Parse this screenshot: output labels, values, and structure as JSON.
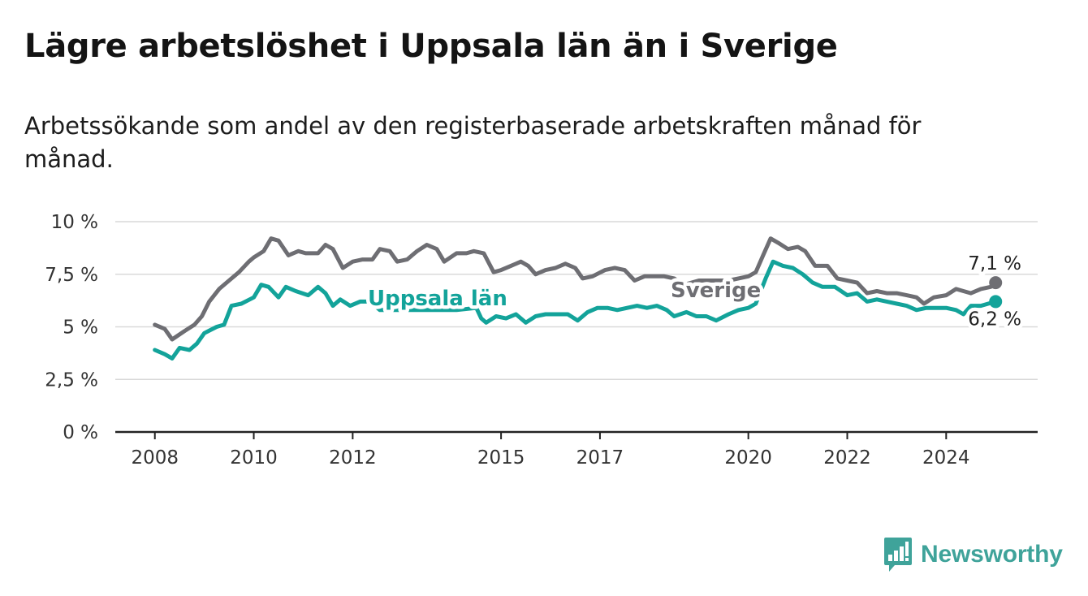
{
  "title": "Lägre arbetslöshet i Uppsala län än i Sverige",
  "subtitle": "Arbetssökande som andel av den registerbaserade arbetskraften månad för månad.",
  "brand": {
    "name": "Newsworthy",
    "icon": "newsworthy-logo-icon",
    "color": "#3fa39a"
  },
  "chart_data": {
    "type": "line",
    "title": "Lägre arbetslöshet i Uppsala län än i Sverige",
    "xlabel": "",
    "ylabel": "",
    "x_ticks": [
      2008,
      2010,
      2012,
      2015,
      2017,
      2020,
      2022,
      2024
    ],
    "y_ticks": [
      0,
      2.5,
      5,
      7.5,
      10
    ],
    "y_tick_labels": [
      "0 %",
      "2,5 %",
      "5 %",
      "7,5 %",
      "10 %"
    ],
    "ylim": [
      0,
      10
    ],
    "xlim": [
      2007.2,
      2025.85
    ],
    "grid": true,
    "legend": "inline labels",
    "series": [
      {
        "name": "Sverige",
        "color": "#6e6e73",
        "end_label": "7,1 %",
        "points": [
          [
            2008.0,
            5.1
          ],
          [
            2008.2,
            4.9
          ],
          [
            2008.35,
            4.4
          ],
          [
            2008.6,
            4.8
          ],
          [
            2008.8,
            5.1
          ],
          [
            2008.95,
            5.5
          ],
          [
            2009.1,
            6.2
          ],
          [
            2009.3,
            6.8
          ],
          [
            2009.5,
            7.2
          ],
          [
            2009.7,
            7.6
          ],
          [
            2009.9,
            8.1
          ],
          [
            2010.0,
            8.3
          ],
          [
            2010.2,
            8.6
          ],
          [
            2010.35,
            9.2
          ],
          [
            2010.5,
            9.1
          ],
          [
            2010.7,
            8.4
          ],
          [
            2010.9,
            8.6
          ],
          [
            2011.05,
            8.5
          ],
          [
            2011.3,
            8.5
          ],
          [
            2011.45,
            8.9
          ],
          [
            2011.6,
            8.7
          ],
          [
            2011.8,
            7.8
          ],
          [
            2012.0,
            8.1
          ],
          [
            2012.2,
            8.2
          ],
          [
            2012.4,
            8.2
          ],
          [
            2012.55,
            8.7
          ],
          [
            2012.75,
            8.6
          ],
          [
            2012.9,
            8.1
          ],
          [
            2013.1,
            8.2
          ],
          [
            2013.3,
            8.6
          ],
          [
            2013.5,
            8.9
          ],
          [
            2013.7,
            8.7
          ],
          [
            2013.85,
            8.1
          ],
          [
            2014.1,
            8.5
          ],
          [
            2014.3,
            8.5
          ],
          [
            2014.45,
            8.6
          ],
          [
            2014.65,
            8.5
          ],
          [
            2014.85,
            7.6
          ],
          [
            2015.0,
            7.7
          ],
          [
            2015.2,
            7.9
          ],
          [
            2015.4,
            8.1
          ],
          [
            2015.55,
            7.9
          ],
          [
            2015.7,
            7.5
          ],
          [
            2015.9,
            7.7
          ],
          [
            2016.1,
            7.8
          ],
          [
            2016.3,
            8.0
          ],
          [
            2016.5,
            7.8
          ],
          [
            2016.65,
            7.3
          ],
          [
            2016.85,
            7.4
          ],
          [
            2017.1,
            7.7
          ],
          [
            2017.3,
            7.8
          ],
          [
            2017.5,
            7.7
          ],
          [
            2017.7,
            7.2
          ],
          [
            2017.9,
            7.4
          ],
          [
            2018.1,
            7.4
          ],
          [
            2018.3,
            7.4
          ],
          [
            2018.5,
            7.3
          ],
          [
            2018.7,
            7.0
          ],
          [
            2019.0,
            7.2
          ],
          [
            2019.3,
            7.2
          ],
          [
            2019.6,
            7.2
          ],
          [
            2019.8,
            7.3
          ],
          [
            2020.0,
            7.4
          ],
          [
            2020.15,
            7.6
          ],
          [
            2020.3,
            8.4
          ],
          [
            2020.45,
            9.2
          ],
          [
            2020.6,
            9.0
          ],
          [
            2020.8,
            8.7
          ],
          [
            2021.0,
            8.8
          ],
          [
            2021.15,
            8.6
          ],
          [
            2021.35,
            7.9
          ],
          [
            2021.6,
            7.9
          ],
          [
            2021.8,
            7.3
          ],
          [
            2022.0,
            7.2
          ],
          [
            2022.2,
            7.1
          ],
          [
            2022.4,
            6.6
          ],
          [
            2022.6,
            6.7
          ],
          [
            2022.8,
            6.6
          ],
          [
            2023.0,
            6.6
          ],
          [
            2023.2,
            6.5
          ],
          [
            2023.4,
            6.4
          ],
          [
            2023.55,
            6.1
          ],
          [
            2023.75,
            6.4
          ],
          [
            2024.0,
            6.5
          ],
          [
            2024.2,
            6.8
          ],
          [
            2024.35,
            6.7
          ],
          [
            2024.5,
            6.6
          ],
          [
            2024.7,
            6.8
          ],
          [
            2024.9,
            6.9
          ],
          [
            2025.0,
            7.1
          ]
        ]
      },
      {
        "name": "Uppsala län",
        "color": "#13a39a",
        "end_label": "6,2 %",
        "points": [
          [
            2008.0,
            3.9
          ],
          [
            2008.2,
            3.7
          ],
          [
            2008.35,
            3.5
          ],
          [
            2008.5,
            4.0
          ],
          [
            2008.7,
            3.9
          ],
          [
            2008.85,
            4.2
          ],
          [
            2009.0,
            4.7
          ],
          [
            2009.25,
            5.0
          ],
          [
            2009.4,
            5.1
          ],
          [
            2009.55,
            6.0
          ],
          [
            2009.75,
            6.1
          ],
          [
            2010.0,
            6.4
          ],
          [
            2010.15,
            7.0
          ],
          [
            2010.3,
            6.9
          ],
          [
            2010.5,
            6.4
          ],
          [
            2010.65,
            6.9
          ],
          [
            2010.85,
            6.7
          ],
          [
            2011.1,
            6.5
          ],
          [
            2011.3,
            6.9
          ],
          [
            2011.45,
            6.6
          ],
          [
            2011.6,
            6.0
          ],
          [
            2011.75,
            6.3
          ],
          [
            2011.95,
            6.0
          ],
          [
            2012.15,
            6.2
          ],
          [
            2012.35,
            6.2
          ],
          [
            2012.55,
            5.8
          ],
          [
            2012.9,
            5.8
          ],
          [
            2013.3,
            5.8
          ],
          [
            2013.7,
            5.8
          ],
          [
            2014.1,
            5.8
          ],
          [
            2014.5,
            5.9
          ],
          [
            2014.6,
            5.4
          ],
          [
            2014.7,
            5.2
          ],
          [
            2014.9,
            5.5
          ],
          [
            2015.1,
            5.4
          ],
          [
            2015.3,
            5.6
          ],
          [
            2015.5,
            5.2
          ],
          [
            2015.7,
            5.5
          ],
          [
            2015.9,
            5.6
          ],
          [
            2016.1,
            5.6
          ],
          [
            2016.35,
            5.6
          ],
          [
            2016.55,
            5.3
          ],
          [
            2016.75,
            5.7
          ],
          [
            2016.95,
            5.9
          ],
          [
            2017.15,
            5.9
          ],
          [
            2017.35,
            5.8
          ],
          [
            2017.55,
            5.9
          ],
          [
            2017.75,
            6.0
          ],
          [
            2017.95,
            5.9
          ],
          [
            2018.15,
            6.0
          ],
          [
            2018.35,
            5.8
          ],
          [
            2018.5,
            5.5
          ],
          [
            2018.75,
            5.7
          ],
          [
            2018.95,
            5.5
          ],
          [
            2019.15,
            5.5
          ],
          [
            2019.35,
            5.3
          ],
          [
            2019.6,
            5.6
          ],
          [
            2019.8,
            5.8
          ],
          [
            2020.0,
            5.9
          ],
          [
            2020.15,
            6.1
          ],
          [
            2020.35,
            7.3
          ],
          [
            2020.5,
            8.1
          ],
          [
            2020.7,
            7.9
          ],
          [
            2020.9,
            7.8
          ],
          [
            2021.1,
            7.5
          ],
          [
            2021.3,
            7.1
          ],
          [
            2021.5,
            6.9
          ],
          [
            2021.75,
            6.9
          ],
          [
            2022.0,
            6.5
          ],
          [
            2022.2,
            6.6
          ],
          [
            2022.4,
            6.2
          ],
          [
            2022.6,
            6.3
          ],
          [
            2022.8,
            6.2
          ],
          [
            2023.0,
            6.1
          ],
          [
            2023.2,
            6.0
          ],
          [
            2023.4,
            5.8
          ],
          [
            2023.6,
            5.9
          ],
          [
            2023.8,
            5.9
          ],
          [
            2024.0,
            5.9
          ],
          [
            2024.2,
            5.8
          ],
          [
            2024.35,
            5.6
          ],
          [
            2024.5,
            6.0
          ],
          [
            2024.7,
            6.0
          ],
          [
            2025.0,
            6.2
          ]
        ]
      }
    ]
  }
}
